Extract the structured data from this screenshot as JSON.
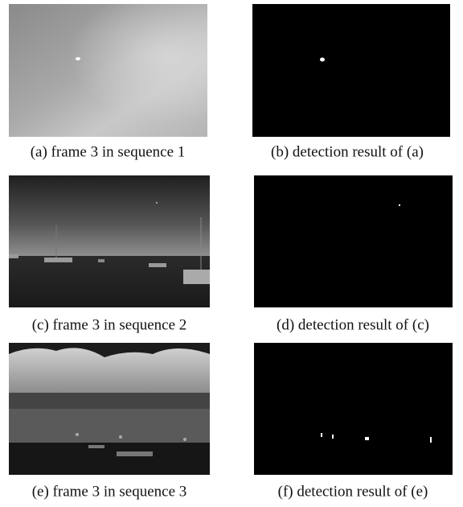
{
  "panels": [
    {
      "caption": "(a) frame 3 in sequence 1"
    },
    {
      "caption": "(b) detection result of (a)"
    },
    {
      "caption": "(c) frame 3 in sequence 2"
    },
    {
      "caption": "(d) detection result of (c)"
    },
    {
      "caption": "(e) frame 3 in sequence 3"
    },
    {
      "caption": "(f) detection result of (e)"
    }
  ]
}
